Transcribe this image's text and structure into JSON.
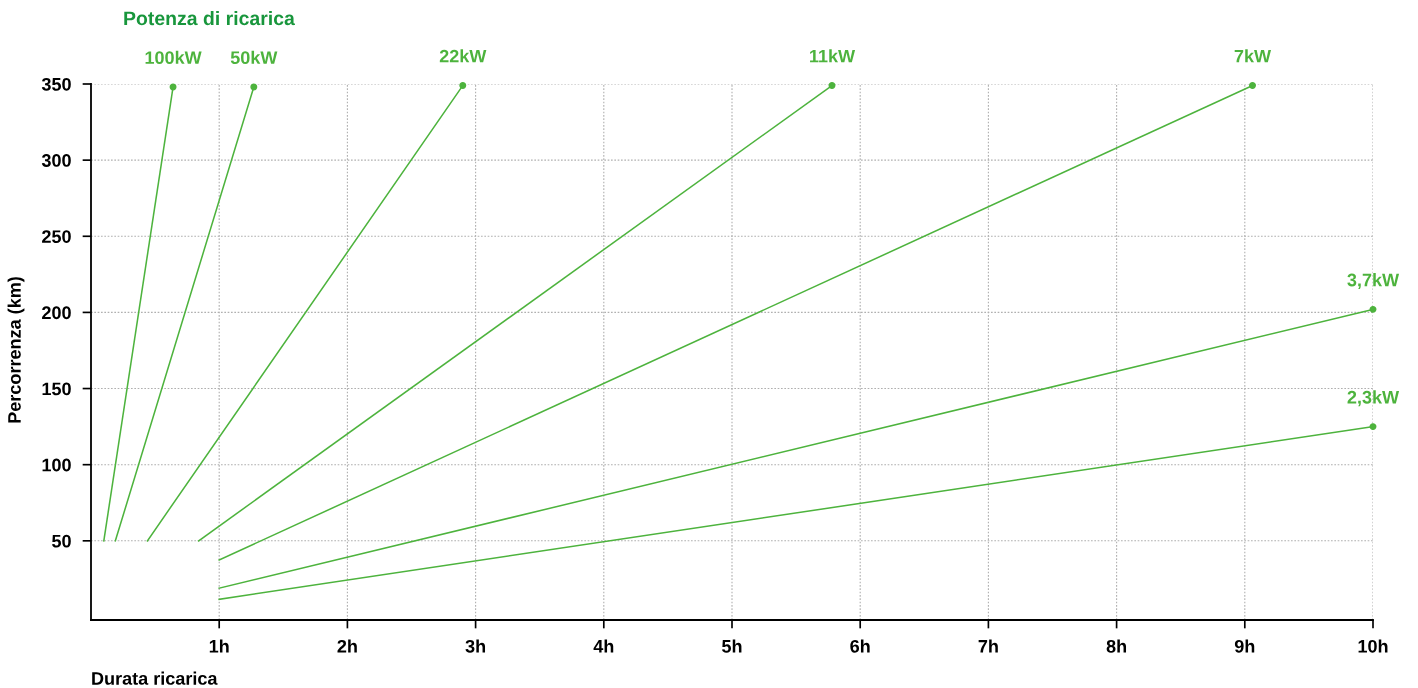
{
  "chart_data": {
    "type": "line",
    "title": "Potenza di ricarica",
    "xlabel": "Durata ricarica",
    "ylabel": "Percorrenza (km)",
    "xlim": [
      0,
      10
    ],
    "ylim": [
      -2,
      350
    ],
    "xticks": [
      {
        "value": 1,
        "label": "1h"
      },
      {
        "value": 2,
        "label": "2h"
      },
      {
        "value": 3,
        "label": "3h"
      },
      {
        "value": 4,
        "label": "4h"
      },
      {
        "value": 5,
        "label": "5h"
      },
      {
        "value": 6,
        "label": "6h"
      },
      {
        "value": 7,
        "label": "7h"
      },
      {
        "value": 8,
        "label": "8h"
      },
      {
        "value": 9,
        "label": "9h"
      },
      {
        "value": 10,
        "label": "10h"
      }
    ],
    "yticks": [
      50,
      100,
      150,
      200,
      250,
      300,
      350
    ],
    "grid": true,
    "marker": "circle",
    "line_style": "solid",
    "legend": false,
    "series": [
      {
        "name": "100kW",
        "color": "#4db33d",
        "x": [
          0.1,
          0.64
        ],
        "values": [
          50,
          348
        ]
      },
      {
        "name": "50kW",
        "color": "#4db33d",
        "x": [
          0.19,
          1.27
        ],
        "values": [
          50,
          348
        ]
      },
      {
        "name": "22kW",
        "color": "#4db33d",
        "x": [
          0.44,
          2.9
        ],
        "values": [
          50,
          349
        ]
      },
      {
        "name": "11kW",
        "color": "#4db33d",
        "x": [
          0.84,
          5.78
        ],
        "values": [
          50,
          349
        ]
      },
      {
        "name": "7kW",
        "color": "#4db33d",
        "x": [
          1,
          9.06
        ],
        "values": [
          37.4,
          349
        ]
      },
      {
        "name": "3,7kW",
        "color": "#4db33d",
        "x": [
          1,
          10
        ],
        "values": [
          18.9,
          202
        ]
      },
      {
        "name": "2,3kW",
        "color": "#4db33d",
        "x": [
          1,
          10
        ],
        "values": [
          11.6,
          125
        ]
      }
    ]
  }
}
